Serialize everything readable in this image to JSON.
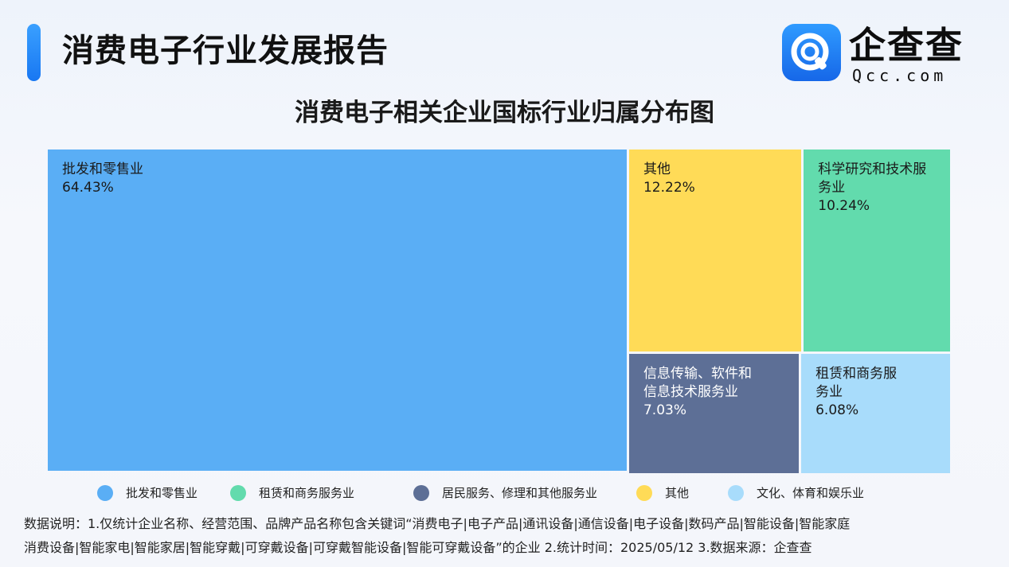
{
  "header": {
    "title": "消费电子行业发展报告",
    "logo_name": "企查查",
    "logo_domain": "Qcc.com"
  },
  "chart_data": {
    "type": "treemap",
    "title": "消费电子相关企业国标行业归属分布图",
    "tiles": [
      {
        "label": "批发和零售业",
        "value": 64.43,
        "value_text": "64.43%",
        "color": "#5aaef5"
      },
      {
        "label": "其他",
        "value": 12.22,
        "value_text": "12.22%",
        "color": "#ffdb57"
      },
      {
        "label": "科学研究和技术服务业",
        "value": 10.24,
        "value_text": "10.24%",
        "color": "#62dbad"
      },
      {
        "label": "信息传输、软件和信息技术服务业",
        "value": 7.03,
        "value_text": "7.03%",
        "color": "#5d6f96"
      },
      {
        "label": "租赁和商务服务业",
        "value": 6.08,
        "value_text": "6.08%",
        "color": "#a8dcfb"
      }
    ],
    "legend": [
      {
        "label": "批发和零售业",
        "color": "#5aaef5"
      },
      {
        "label": "租赁和商务服务业",
        "color": "#62dbad"
      },
      {
        "label": "居民服务、修理和其他服务业",
        "color": "#5d6f96"
      },
      {
        "label": "其他",
        "color": "#ffdb57"
      },
      {
        "label": "文化、体育和娱乐业",
        "color": "#a8dcfb"
      }
    ]
  },
  "footnote": {
    "line1": "数据说明：1.仅统计企业名称、经营范围、品牌产品名称包含关键词“消费电子|电子产品|通讯设备|通信设备|电子设备|数码产品|智能设备|智能家庭",
    "line2": "消费设备|智能家电|智能家居|智能穿戴|可穿戴设备|可穿戴智能设备|智能可穿戴设备”的企业   2.统计时间：2025/05/12    3.数据来源：企查查"
  }
}
